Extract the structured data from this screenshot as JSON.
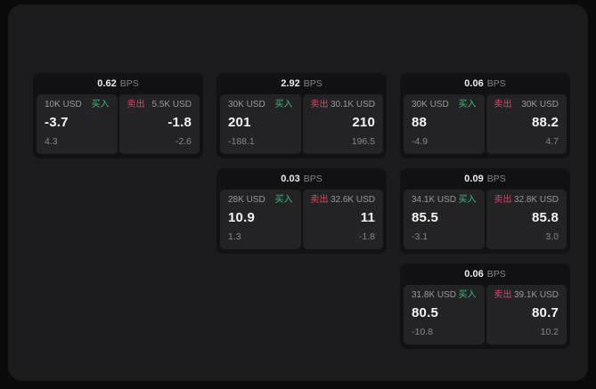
{
  "labels": {
    "bps_unit": "BPS",
    "buy": "买入",
    "sell": "卖出"
  },
  "colors": {
    "outer_background": "#0a0a0a",
    "panel_background": "#1b1b1d",
    "card_background": "#111113",
    "tile_background": "#232326",
    "buy_green": "#43b97a",
    "sell_red": "#d4486a",
    "primary_text": "#f4f4f5",
    "muted_text": "#87878c"
  },
  "cards": [
    {
      "bps": "0.62",
      "buy": {
        "amount": "10K USD",
        "price": "-3.7",
        "sub": "4.3"
      },
      "sell": {
        "amount": "5.5K USD",
        "price": "-1.8",
        "sub": "-2.6"
      }
    },
    {
      "bps": "2.92",
      "buy": {
        "amount": "30K USD",
        "price": "201",
        "sub": "-188.1"
      },
      "sell": {
        "amount": "30.1K USD",
        "price": "210",
        "sub": "196.5"
      }
    },
    {
      "bps": "0.06",
      "buy": {
        "amount": "30K USD",
        "price": "88",
        "sub": "-4.9"
      },
      "sell": {
        "amount": "30K USD",
        "price": "88.2",
        "sub": "4.7"
      }
    },
    {
      "bps": "0.03",
      "buy": {
        "amount": "28K USD",
        "price": "10.9",
        "sub": "1.3"
      },
      "sell": {
        "amount": "32.6K USD",
        "price": "11",
        "sub": "-1.8"
      }
    },
    {
      "bps": "0.09",
      "buy": {
        "amount": "34.1K USD",
        "price": "85.5",
        "sub": "-3.1"
      },
      "sell": {
        "amount": "32.8K USD",
        "price": "85.8",
        "sub": "3.0"
      }
    },
    {
      "bps": "0.06",
      "buy": {
        "amount": "31.8K USD",
        "price": "80.5",
        "sub": "-10.8"
      },
      "sell": {
        "amount": "39.1K USD",
        "price": "80.7",
        "sub": "10.2"
      }
    }
  ]
}
